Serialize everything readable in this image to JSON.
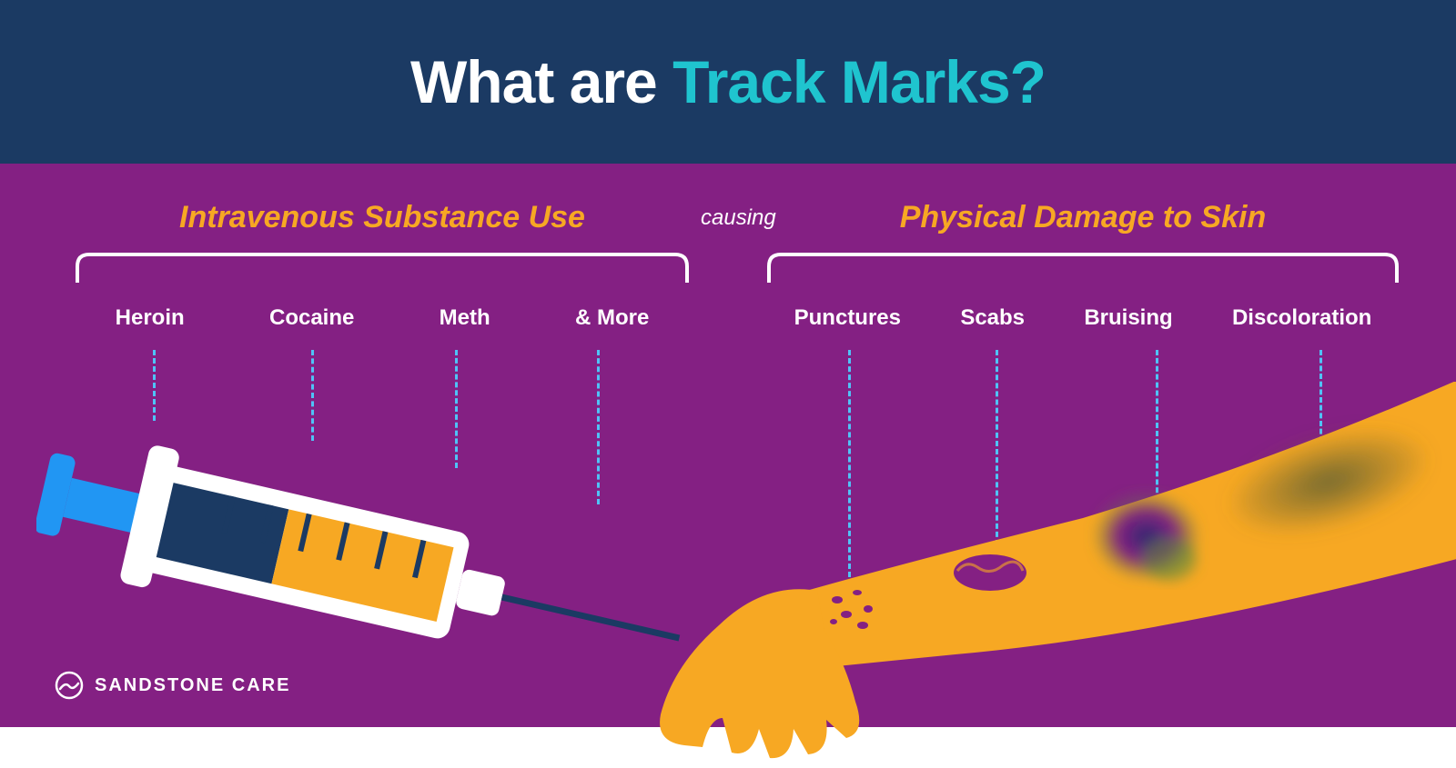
{
  "colors": {
    "header_bg": "#1b3a63",
    "main_bg": "#842083",
    "title_accent": "#1fc4cf",
    "section_title": "#f7a823",
    "bracket": "#ffffff",
    "dash": "#4fc3f7",
    "syringe_body": "#ffffff",
    "syringe_blue": "#2196f3",
    "syringe_blue_dark": "#1b3a63",
    "syringe_orange": "#f7a823",
    "syringe_needle": "#1b3a63",
    "arm": "#f7a823",
    "scab": "#842083",
    "bruise_dark": "#2a2a6e",
    "bruise_green": "#5a8a3a",
    "discolor": "#6b6530"
  },
  "title": {
    "part1": "What are ",
    "part2": "Track Marks?"
  },
  "connector": "causing",
  "left": {
    "title": "Intravenous Substance Use",
    "items": [
      "Heroin",
      "Cocaine",
      "Meth",
      "& More"
    ]
  },
  "right": {
    "title": "Physical Damage to Skin",
    "items": [
      "Punctures",
      "Scabs",
      "Bruising",
      "Discoloration"
    ]
  },
  "logo_text": "SANDSTONE CARE"
}
